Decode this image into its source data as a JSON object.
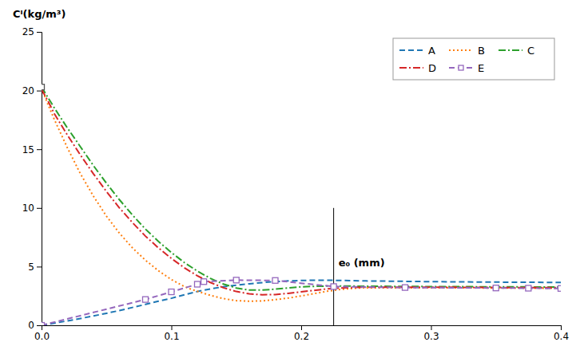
{
  "chart_data": {
    "type": "line",
    "y_label": "Cᴵ(kg/m³)",
    "xlim": [
      0,
      0.4
    ],
    "ylim": [
      0,
      25
    ],
    "xticks": [
      {
        "value": 0,
        "label": "0.0"
      },
      0.1,
      0.2,
      0.3,
      0.4
    ],
    "yticks": [
      0,
      5,
      10,
      15,
      20,
      25
    ],
    "legend": "upper right",
    "series": [
      {
        "name": "A",
        "line_style": "dashed",
        "x": [
          0.0,
          0.005,
          0.01,
          0.02,
          0.03,
          0.04,
          0.05,
          0.06,
          0.07,
          0.08,
          0.09,
          0.1,
          0.11,
          0.12,
          0.13,
          0.14,
          0.15,
          0.16,
          0.17,
          0.18,
          0.19,
          0.2,
          0.21,
          0.22,
          0.23,
          0.24,
          0.25,
          0.3,
          0.35,
          0.4
        ],
        "values": [
          0.0,
          0.08,
          0.18,
          0.38,
          0.58,
          0.8,
          1.02,
          1.26,
          1.52,
          1.78,
          2.05,
          2.3,
          2.6,
          2.88,
          3.1,
          3.28,
          3.42,
          3.54,
          3.64,
          3.72,
          3.78,
          3.82,
          3.84,
          3.84,
          3.82,
          3.8,
          3.78,
          3.72,
          3.68,
          3.65
        ]
      },
      {
        "name": "B",
        "line_style": "dotted",
        "x": [
          0.0,
          0.005,
          0.01,
          0.02,
          0.03,
          0.04,
          0.05,
          0.06,
          0.07,
          0.08,
          0.09,
          0.1,
          0.11,
          0.115,
          0.12,
          0.13,
          0.14,
          0.15,
          0.16,
          0.17,
          0.18,
          0.19,
          0.2,
          0.21,
          0.22,
          0.23,
          0.24,
          0.25,
          0.3,
          0.35,
          0.4
        ],
        "values": [
          20.2,
          18.8,
          17.5,
          15.1,
          12.9,
          11.0,
          9.3,
          7.85,
          6.6,
          5.55,
          4.65,
          3.9,
          3.3,
          3.08,
          2.9,
          2.55,
          2.28,
          2.1,
          2.05,
          2.08,
          2.18,
          2.32,
          2.5,
          2.7,
          2.9,
          3.05,
          3.15,
          3.2,
          3.2,
          3.18,
          3.15
        ]
      },
      {
        "name": "C",
        "line_style": "dashdot",
        "x": [
          0.0,
          0.005,
          0.01,
          0.02,
          0.03,
          0.04,
          0.05,
          0.06,
          0.07,
          0.08,
          0.09,
          0.1,
          0.11,
          0.12,
          0.13,
          0.14,
          0.15,
          0.16,
          0.17,
          0.18,
          0.19,
          0.2,
          0.21,
          0.22,
          0.225,
          0.23,
          0.24,
          0.25,
          0.3,
          0.35,
          0.4
        ],
        "values": [
          20.3,
          19.4,
          18.5,
          16.8,
          15.2,
          13.6,
          12.1,
          10.7,
          9.4,
          8.2,
          7.15,
          6.2,
          5.35,
          4.62,
          4.0,
          3.52,
          3.18,
          3.0,
          3.0,
          3.08,
          3.18,
          3.28,
          3.32,
          3.34,
          3.35,
          3.35,
          3.34,
          3.33,
          3.3,
          3.28,
          3.26
        ]
      },
      {
        "name": "D",
        "line_style": "dashdot",
        "x": [
          0.0,
          0.005,
          0.01,
          0.02,
          0.03,
          0.04,
          0.05,
          0.06,
          0.07,
          0.08,
          0.09,
          0.1,
          0.11,
          0.12,
          0.13,
          0.14,
          0.15,
          0.16,
          0.17,
          0.18,
          0.19,
          0.2,
          0.21,
          0.22,
          0.23,
          0.24,
          0.25,
          0.3,
          0.35,
          0.4
        ],
        "values": [
          20.1,
          19.1,
          18.0,
          16.2,
          14.5,
          12.9,
          11.4,
          10.0,
          8.75,
          7.6,
          6.6,
          5.7,
          4.9,
          4.22,
          3.65,
          3.2,
          2.88,
          2.68,
          2.6,
          2.62,
          2.72,
          2.85,
          2.98,
          3.1,
          3.18,
          3.22,
          3.25,
          3.25,
          3.22,
          3.2
        ]
      },
      {
        "name": "E",
        "line_style": "dashed",
        "marker": "square",
        "x": [
          0.0,
          0.08,
          0.1,
          0.12,
          0.125,
          0.15,
          0.18,
          0.225,
          0.28,
          0.35,
          0.375,
          0.4
        ],
        "values": [
          0.0,
          2.2,
          2.85,
          3.5,
          3.72,
          3.85,
          3.82,
          3.3,
          3.22,
          3.18,
          3.16,
          3.14
        ]
      }
    ],
    "points": [
      {
        "x": 0.0,
        "y": 20.3,
        "marker": "square"
      }
    ],
    "vlines": [
      {
        "x": 0.225,
        "y0": 0,
        "y1": 10,
        "label": "e₀ (mm)"
      }
    ]
  }
}
